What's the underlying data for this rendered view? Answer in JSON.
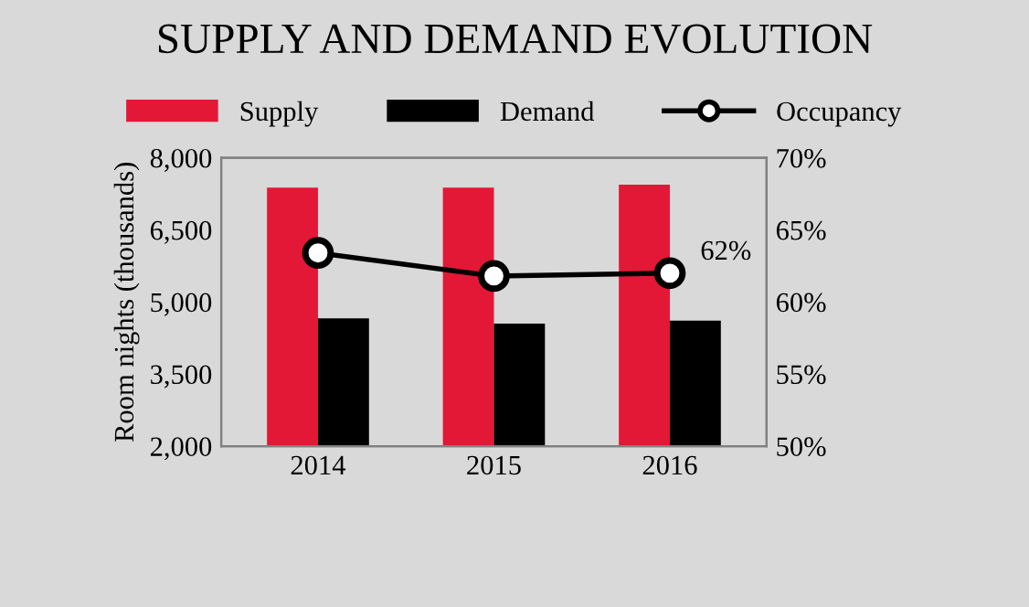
{
  "chart_data": {
    "type": "bar",
    "title": "SUPPLY AND DEMAND EVOLUTION",
    "ylabel": "Room nights (thousands)",
    "categories": [
      "2014",
      "2015",
      "2016"
    ],
    "series": [
      {
        "name": "Supply",
        "color": "#e31837",
        "values": [
          7380,
          7380,
          7440
        ]
      },
      {
        "name": "Demand",
        "color": "#000000",
        "values": [
          4660,
          4550,
          4610
        ]
      },
      {
        "name": "Occupancy",
        "type": "line",
        "axis": "y2",
        "color": "#000000",
        "marker": "circle",
        "values": [
          63.4,
          61.8,
          62.0
        ],
        "value_labels": [
          null,
          null,
          "62%"
        ]
      }
    ],
    "ylim": [
      2000,
      8000
    ],
    "yticks": [
      {
        "value": 2000,
        "label": "2,000"
      },
      {
        "value": 3500,
        "label": "3,500"
      },
      {
        "value": 5000,
        "label": "5,000"
      },
      {
        "value": 6500,
        "label": "6,500"
      },
      {
        "value": 8000,
        "label": "8,000"
      }
    ],
    "y2lim": [
      50,
      70
    ],
    "y2ticks": [
      {
        "value": 50,
        "label": "50%"
      },
      {
        "value": 55,
        "label": "55%"
      },
      {
        "value": 60,
        "label": "60%"
      },
      {
        "value": 65,
        "label": "65%"
      },
      {
        "value": 70,
        "label": "70%"
      }
    ],
    "grid": false,
    "legend": "top"
  }
}
